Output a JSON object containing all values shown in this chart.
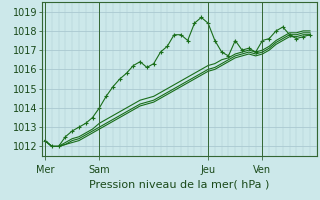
{
  "xlabel": "Pression niveau de la mer( hPa )",
  "background_color": "#cce8ea",
  "grid_color": "#aac8d0",
  "line_color": "#1a6e1a",
  "vline_color": "#336633",
  "ylim": [
    1011.5,
    1019.5
  ],
  "yticks": [
    1012,
    1013,
    1014,
    1015,
    1016,
    1017,
    1018,
    1019
  ],
  "day_labels": [
    "Mer",
    "Sam",
    "Jeu",
    "Ven"
  ],
  "day_positions": [
    0,
    8,
    24,
    32
  ],
  "xlim": [
    -0.5,
    40
  ],
  "series": [
    [
      1012.3,
      1012.0,
      1012.0,
      1012.5,
      1012.8,
      1013.0,
      1013.2,
      1013.5,
      1014.0,
      1014.6,
      1015.1,
      1015.5,
      1015.8,
      1016.2,
      1016.4,
      1016.1,
      1016.3,
      1016.9,
      1017.2,
      1017.8,
      1017.8,
      1017.5,
      1018.4,
      1018.7,
      1018.4,
      1017.5,
      1016.9,
      1016.7,
      1017.5,
      1017.0,
      1017.1,
      1016.9,
      1017.5,
      1017.6,
      1018.0,
      1018.2,
      1017.8,
      1017.6,
      1017.7,
      1017.8
    ],
    [
      1012.3,
      1012.0,
      1012.0,
      1012.2,
      1012.4,
      1012.5,
      1012.7,
      1012.9,
      1013.2,
      1013.4,
      1013.6,
      1013.8,
      1014.0,
      1014.2,
      1014.4,
      1014.5,
      1014.6,
      1014.8,
      1015.0,
      1015.2,
      1015.4,
      1015.6,
      1015.8,
      1016.0,
      1016.2,
      1016.3,
      1016.5,
      1016.6,
      1016.8,
      1016.9,
      1017.0,
      1016.9,
      1017.0,
      1017.2,
      1017.5,
      1017.7,
      1017.9,
      1017.9,
      1018.0,
      1018.0
    ],
    [
      1012.3,
      1012.0,
      1012.0,
      1012.1,
      1012.3,
      1012.4,
      1012.6,
      1012.8,
      1013.0,
      1013.2,
      1013.4,
      1013.6,
      1013.8,
      1014.0,
      1014.2,
      1014.3,
      1014.4,
      1014.6,
      1014.8,
      1015.0,
      1015.2,
      1015.4,
      1015.6,
      1015.8,
      1016.0,
      1016.1,
      1016.3,
      1016.5,
      1016.7,
      1016.8,
      1016.9,
      1016.8,
      1016.9,
      1017.1,
      1017.4,
      1017.6,
      1017.8,
      1017.8,
      1017.9,
      1017.9
    ],
    [
      1012.3,
      1012.0,
      1012.0,
      1012.1,
      1012.2,
      1012.3,
      1012.5,
      1012.7,
      1012.9,
      1013.1,
      1013.3,
      1013.5,
      1013.7,
      1013.9,
      1014.1,
      1014.2,
      1014.3,
      1014.5,
      1014.7,
      1014.9,
      1015.1,
      1015.3,
      1015.5,
      1015.7,
      1015.9,
      1016.0,
      1016.2,
      1016.4,
      1016.6,
      1016.7,
      1016.8,
      1016.7,
      1016.8,
      1017.0,
      1017.3,
      1017.5,
      1017.7,
      1017.7,
      1017.8,
      1017.8
    ]
  ],
  "fontsize_xlabel": 8,
  "fontsize_tick": 7
}
